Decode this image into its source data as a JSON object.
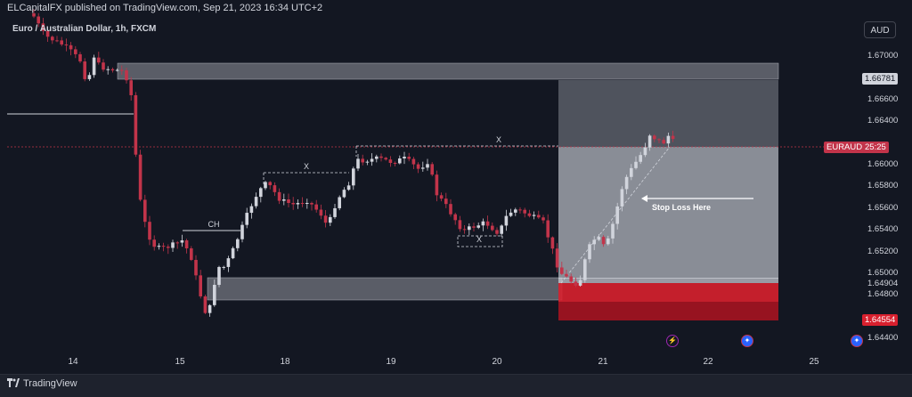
{
  "header": {
    "published_text": "ELCapitalFX published on TradingView.com, Sep 21, 2023 16:34 UTC+2"
  },
  "chart": {
    "symbol_title": "Euro / Australian Dollar, 1h, FXCM",
    "currency": "AUD"
  },
  "price_axis": {
    "labels": [
      "1.67000",
      "1.66781",
      "1.66600",
      "1.66400",
      "1.66000",
      "1.65800",
      "1.65600",
      "1.65400",
      "1.65200",
      "1.65000",
      "1.64904",
      "1.64800",
      "1.64554",
      "1.64400"
    ],
    "last_symbol_badge": "EURAUD",
    "countdown": "25:25",
    "target_price": "1.66781",
    "stop_price": "1.64904",
    "stop_loss_price": "1.64554"
  },
  "time_axis": {
    "labels": [
      "14",
      "15",
      "18",
      "19",
      "20",
      "21",
      "22",
      "25"
    ]
  },
  "annotations": {
    "ch_label": "CH",
    "x_labels": [
      "X",
      "X",
      "X"
    ],
    "stop_loss_text": "Stop Loss Here"
  },
  "footer": {
    "brand": "TradingView"
  },
  "colors": {
    "background": "#131722",
    "bull": "#d1d4dc",
    "bear": "#c2344a",
    "zone": "#9598a1",
    "stop_zone": "#d8202e",
    "badge_red": "#c2344a"
  }
}
